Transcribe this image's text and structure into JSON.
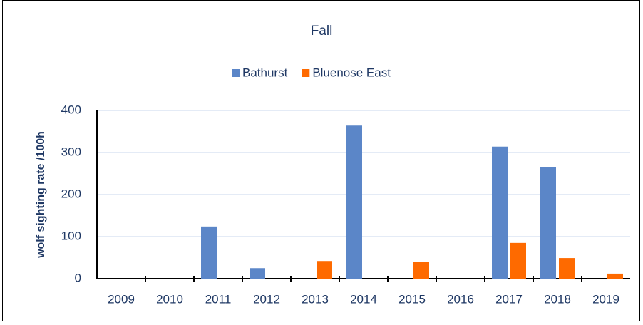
{
  "chart_data": {
    "type": "bar",
    "title": "Fall",
    "y_label": "wolf sighting rate /100h",
    "categories": [
      "2009",
      "2010",
      "2011",
      "2012",
      "2013",
      "2014",
      "2015",
      "2016",
      "2017",
      "2018",
      "2019"
    ],
    "series": [
      {
        "name": "Bathurst",
        "color": "#5b86c8",
        "values": [
          0,
          0,
          124,
          25,
          0,
          364,
          0,
          0,
          314,
          266,
          0
        ]
      },
      {
        "name": "Bluenose East",
        "color": "#fe6a00",
        "values": [
          0,
          0,
          0,
          0,
          42,
          0,
          39,
          0,
          85,
          49,
          12
        ]
      }
    ],
    "ylim": [
      0,
      400
    ],
    "yticks": [
      0,
      100,
      200,
      300,
      400
    ],
    "grid": true,
    "legend": "top"
  }
}
